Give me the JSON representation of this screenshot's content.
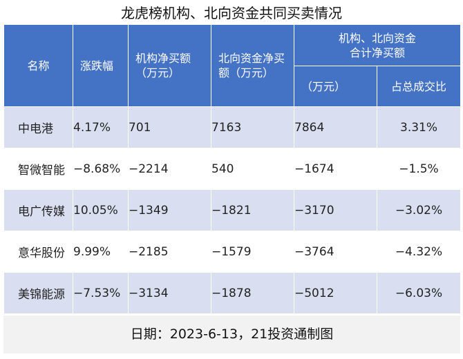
{
  "title": "龙虎榜机构、北向资金共同买卖情况",
  "headers": {
    "name": "名称",
    "change": "涨跌幅",
    "inst_line1": "机构净买额",
    "inst_line2": "（万元）",
    "north_line1": "北向资金净买",
    "north_line2": "额（万元）",
    "combined_line1": "机构、北向资金",
    "combined_line2": "合计净买额",
    "combined_amount": "（万元）",
    "combined_ratio": "占总成交比"
  },
  "rows": [
    {
      "name": "中电港",
      "change": "4.17%",
      "inst": "701",
      "north": "7163",
      "total": "7864",
      "ratio": "3.31%"
    },
    {
      "name": "智微智能",
      "change": "−8.68%",
      "inst": "−2214",
      "north": "540",
      "total": "−1674",
      "ratio": "−1.5%"
    },
    {
      "name": "电广传媒",
      "change": "10.05%",
      "inst": "−1349",
      "north": "−1821",
      "total": "−3170",
      "ratio": "−3.02%"
    },
    {
      "name": "意华股份",
      "change": "9.99%",
      "inst": "−2185",
      "north": "−1579",
      "total": "−3764",
      "ratio": "−4.32%"
    },
    {
      "name": "美锦能源",
      "change": "−7.53%",
      "inst": "−3134",
      "north": "−1878",
      "total": "−5012",
      "ratio": "−6.03%"
    }
  ],
  "footer": "日期：2023-6-13，21投资通制图",
  "colors": {
    "header_bg": "#4472c4",
    "band": "#d9dff0",
    "footer_bg": "#f2f2f2"
  }
}
